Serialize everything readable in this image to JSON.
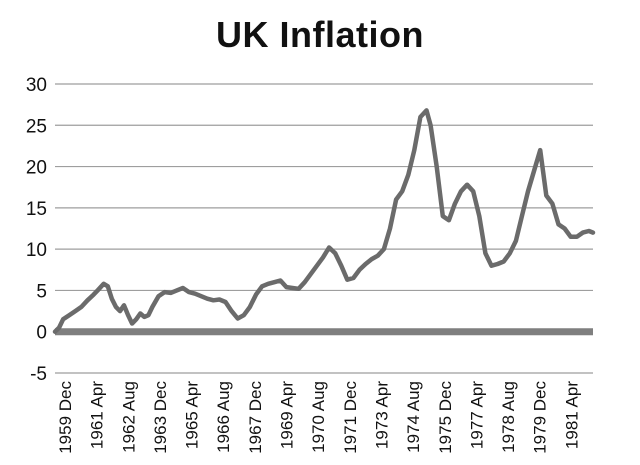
{
  "chart_data": {
    "type": "line",
    "title": "UK Inflation",
    "xlabel": "",
    "ylabel": "",
    "ylim": [
      -5,
      30
    ],
    "y_ticks": [
      -5,
      0,
      5,
      10,
      15,
      20,
      25,
      30
    ],
    "grid": true,
    "legend": "none",
    "x_tick_labels": [
      "1959 Dec",
      "1961 Apr",
      "1962 Aug",
      "1963 Dec",
      "1965 Apr",
      "1966 Aug",
      "1967 Dec",
      "1969 Apr",
      "1970 Aug",
      "1971 Dec",
      "1973 Apr",
      "1974 Aug",
      "1975 Dec",
      "1977 Apr",
      "1978 Aug",
      "1979 Dec",
      "1981 Apr"
    ],
    "x_range": [
      "1959-12",
      "1982-01"
    ],
    "colors": {
      "series": "#6b6b6b",
      "grid": "#9e9e9e",
      "zero_line": "#7f7f7f"
    },
    "series": [
      {
        "x": [
          "1959-12",
          "1960-02",
          "1960-04",
          "1960-07",
          "1960-10",
          "1961-01",
          "1961-04",
          "1961-07",
          "1961-09",
          "1961-12",
          "1962-02",
          "1962-04",
          "1962-06",
          "1962-08",
          "1962-10",
          "1962-12",
          "1963-02",
          "1963-04",
          "1963-06",
          "1963-08",
          "1963-10",
          "1963-12",
          "1964-03",
          "1964-06",
          "1964-09",
          "1964-12",
          "1965-03",
          "1965-06",
          "1965-09",
          "1965-12",
          "1966-03",
          "1966-06",
          "1966-09",
          "1966-12",
          "1967-03",
          "1967-06",
          "1967-09",
          "1967-12",
          "1968-03",
          "1968-06",
          "1968-09",
          "1968-12",
          "1969-03",
          "1969-06",
          "1969-09",
          "1969-12",
          "1970-03",
          "1970-06",
          "1970-09",
          "1970-12",
          "1971-03",
          "1971-06",
          "1971-09",
          "1971-12",
          "1972-03",
          "1972-06",
          "1972-09",
          "1972-12",
          "1973-03",
          "1973-06",
          "1973-09",
          "1973-12",
          "1974-03",
          "1974-06",
          "1974-09",
          "1974-12",
          "1975-03",
          "1975-05",
          "1975-08",
          "1975-11",
          "1976-02",
          "1976-05",
          "1976-08",
          "1976-11",
          "1977-02",
          "1977-05",
          "1977-08",
          "1977-11",
          "1978-02",
          "1978-05",
          "1978-08",
          "1978-11",
          "1979-02",
          "1979-05",
          "1979-08",
          "1979-11",
          "1980-02",
          "1980-05",
          "1980-08",
          "1980-11",
          "1981-02",
          "1981-05",
          "1981-08",
          "1981-11",
          "1982-01"
        ],
        "values": [
          0.0,
          0.5,
          1.5,
          2.0,
          2.5,
          3.0,
          3.8,
          4.5,
          5.0,
          5.8,
          5.5,
          4.0,
          3.0,
          2.5,
          3.2,
          2.0,
          1.0,
          1.5,
          2.2,
          1.8,
          2.0,
          3.0,
          4.3,
          4.8,
          4.7,
          5.0,
          5.3,
          4.8,
          4.6,
          4.3,
          4.0,
          3.8,
          3.9,
          3.6,
          2.5,
          1.6,
          2.0,
          3.0,
          4.5,
          5.5,
          5.8,
          6.0,
          6.2,
          5.4,
          5.3,
          5.2,
          6.0,
          7.0,
          8.0,
          9.0,
          10.2,
          9.5,
          8.0,
          6.3,
          6.5,
          7.5,
          8.2,
          8.8,
          9.2,
          10.0,
          12.5,
          16.0,
          17.0,
          19.0,
          22.0,
          26.0,
          26.8,
          25.0,
          20.0,
          14.0,
          13.5,
          15.5,
          17.0,
          17.8,
          17.0,
          14.0,
          9.5,
          8.0,
          8.2,
          8.5,
          9.5,
          11.0,
          14.0,
          17.0,
          19.5,
          22.0,
          16.5,
          15.5,
          13.0,
          12.5,
          11.5,
          11.5,
          12.0,
          12.2,
          12.0
        ]
      }
    ]
  }
}
